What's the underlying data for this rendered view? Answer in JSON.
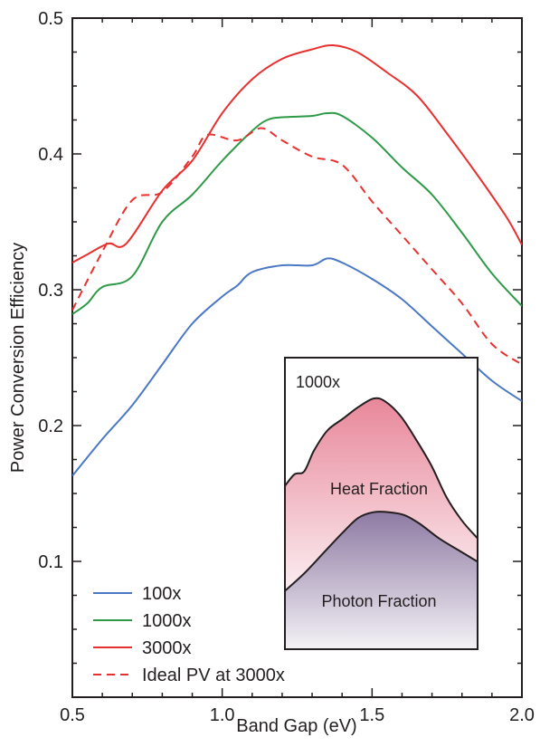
{
  "chart_data": {
    "type": "line",
    "xlabel": "Band Gap (eV)",
    "ylabel": "Power Conversion Efficiency",
    "xlim": [
      0.5,
      2.0
    ],
    "ylim": [
      0.0,
      0.5
    ],
    "xticks": [
      0.5,
      1.0,
      1.5,
      2.0
    ],
    "xtick_labels": [
      "0.5",
      "1.0",
      "1.5",
      "2.0"
    ],
    "yticks": [
      0.1,
      0.2,
      0.3,
      0.4,
      0.5
    ],
    "ytick_labels": [
      "0.1",
      "0.2",
      "0.3",
      "0.4",
      "0.5"
    ],
    "grid": false,
    "legend_position": "bottom-left",
    "series": [
      {
        "name": "100x",
        "color": "#4a78c4",
        "dash": "solid",
        "points": [
          [
            0.5,
            0.163
          ],
          [
            0.6,
            0.19
          ],
          [
            0.7,
            0.215
          ],
          [
            0.8,
            0.245
          ],
          [
            0.9,
            0.275
          ],
          [
            1.0,
            0.295
          ],
          [
            1.05,
            0.303
          ],
          [
            1.1,
            0.313
          ],
          [
            1.2,
            0.318
          ],
          [
            1.3,
            0.318
          ],
          [
            1.35,
            0.323
          ],
          [
            1.4,
            0.32
          ],
          [
            1.5,
            0.308
          ],
          [
            1.6,
            0.293
          ],
          [
            1.7,
            0.273
          ],
          [
            1.8,
            0.253
          ],
          [
            1.9,
            0.233
          ],
          [
            2.0,
            0.218
          ]
        ]
      },
      {
        "name": "1000x",
        "color": "#2e9a47",
        "dash": "solid",
        "points": [
          [
            0.5,
            0.282
          ],
          [
            0.55,
            0.29
          ],
          [
            0.6,
            0.302
          ],
          [
            0.7,
            0.31
          ],
          [
            0.8,
            0.35
          ],
          [
            0.9,
            0.37
          ],
          [
            1.0,
            0.395
          ],
          [
            1.1,
            0.417
          ],
          [
            1.15,
            0.425
          ],
          [
            1.2,
            0.427
          ],
          [
            1.3,
            0.428
          ],
          [
            1.35,
            0.43
          ],
          [
            1.4,
            0.428
          ],
          [
            1.5,
            0.412
          ],
          [
            1.6,
            0.39
          ],
          [
            1.7,
            0.37
          ],
          [
            1.8,
            0.342
          ],
          [
            1.9,
            0.312
          ],
          [
            2.0,
            0.288
          ]
        ]
      },
      {
        "name": "3000x",
        "color": "#e8312f",
        "dash": "solid",
        "points": [
          [
            0.5,
            0.32
          ],
          [
            0.55,
            0.326
          ],
          [
            0.62,
            0.334
          ],
          [
            0.68,
            0.334
          ],
          [
            0.8,
            0.373
          ],
          [
            0.9,
            0.395
          ],
          [
            1.0,
            0.43
          ],
          [
            1.1,
            0.455
          ],
          [
            1.2,
            0.47
          ],
          [
            1.3,
            0.477
          ],
          [
            1.37,
            0.48
          ],
          [
            1.45,
            0.475
          ],
          [
            1.55,
            0.46
          ],
          [
            1.65,
            0.443
          ],
          [
            1.75,
            0.415
          ],
          [
            1.85,
            0.385
          ],
          [
            1.95,
            0.353
          ],
          [
            2.0,
            0.333
          ]
        ]
      },
      {
        "name": "Ideal PV at 3000x",
        "color": "#e8312f",
        "dash": "dashed",
        "points": [
          [
            0.5,
            0.285
          ],
          [
            0.6,
            0.328
          ],
          [
            0.7,
            0.366
          ],
          [
            0.8,
            0.372
          ],
          [
            0.9,
            0.398
          ],
          [
            0.95,
            0.414
          ],
          [
            1.05,
            0.41
          ],
          [
            1.13,
            0.419
          ],
          [
            1.2,
            0.41
          ],
          [
            1.3,
            0.398
          ],
          [
            1.4,
            0.392
          ],
          [
            1.5,
            0.365
          ],
          [
            1.6,
            0.34
          ],
          [
            1.7,
            0.315
          ],
          [
            1.8,
            0.29
          ],
          [
            1.9,
            0.26
          ],
          [
            2.0,
            0.245
          ]
        ]
      }
    ],
    "inset": {
      "label": "1000x",
      "heat_fraction_label": "Heat Fraction",
      "photon_fraction_label": "Photon Fraction",
      "heat_color": "#e8879a",
      "photon_color": "#8e7aa3",
      "heat_top": [
        [
          0.0,
          0.56
        ],
        [
          0.05,
          0.6
        ],
        [
          0.1,
          0.61
        ],
        [
          0.15,
          0.68
        ],
        [
          0.22,
          0.75
        ],
        [
          0.3,
          0.79
        ],
        [
          0.38,
          0.83
        ],
        [
          0.46,
          0.86
        ],
        [
          0.52,
          0.85
        ],
        [
          0.6,
          0.8
        ],
        [
          0.68,
          0.72
        ],
        [
          0.76,
          0.63
        ],
        [
          0.84,
          0.52
        ],
        [
          0.92,
          0.44
        ],
        [
          1.0,
          0.38
        ]
      ],
      "photon_top": [
        [
          0.0,
          0.2
        ],
        [
          0.1,
          0.26
        ],
        [
          0.2,
          0.33
        ],
        [
          0.3,
          0.4
        ],
        [
          0.38,
          0.45
        ],
        [
          0.46,
          0.47
        ],
        [
          0.54,
          0.47
        ],
        [
          0.62,
          0.46
        ],
        [
          0.7,
          0.43
        ],
        [
          0.8,
          0.38
        ],
        [
          0.9,
          0.34
        ],
        [
          1.0,
          0.3
        ]
      ]
    }
  }
}
